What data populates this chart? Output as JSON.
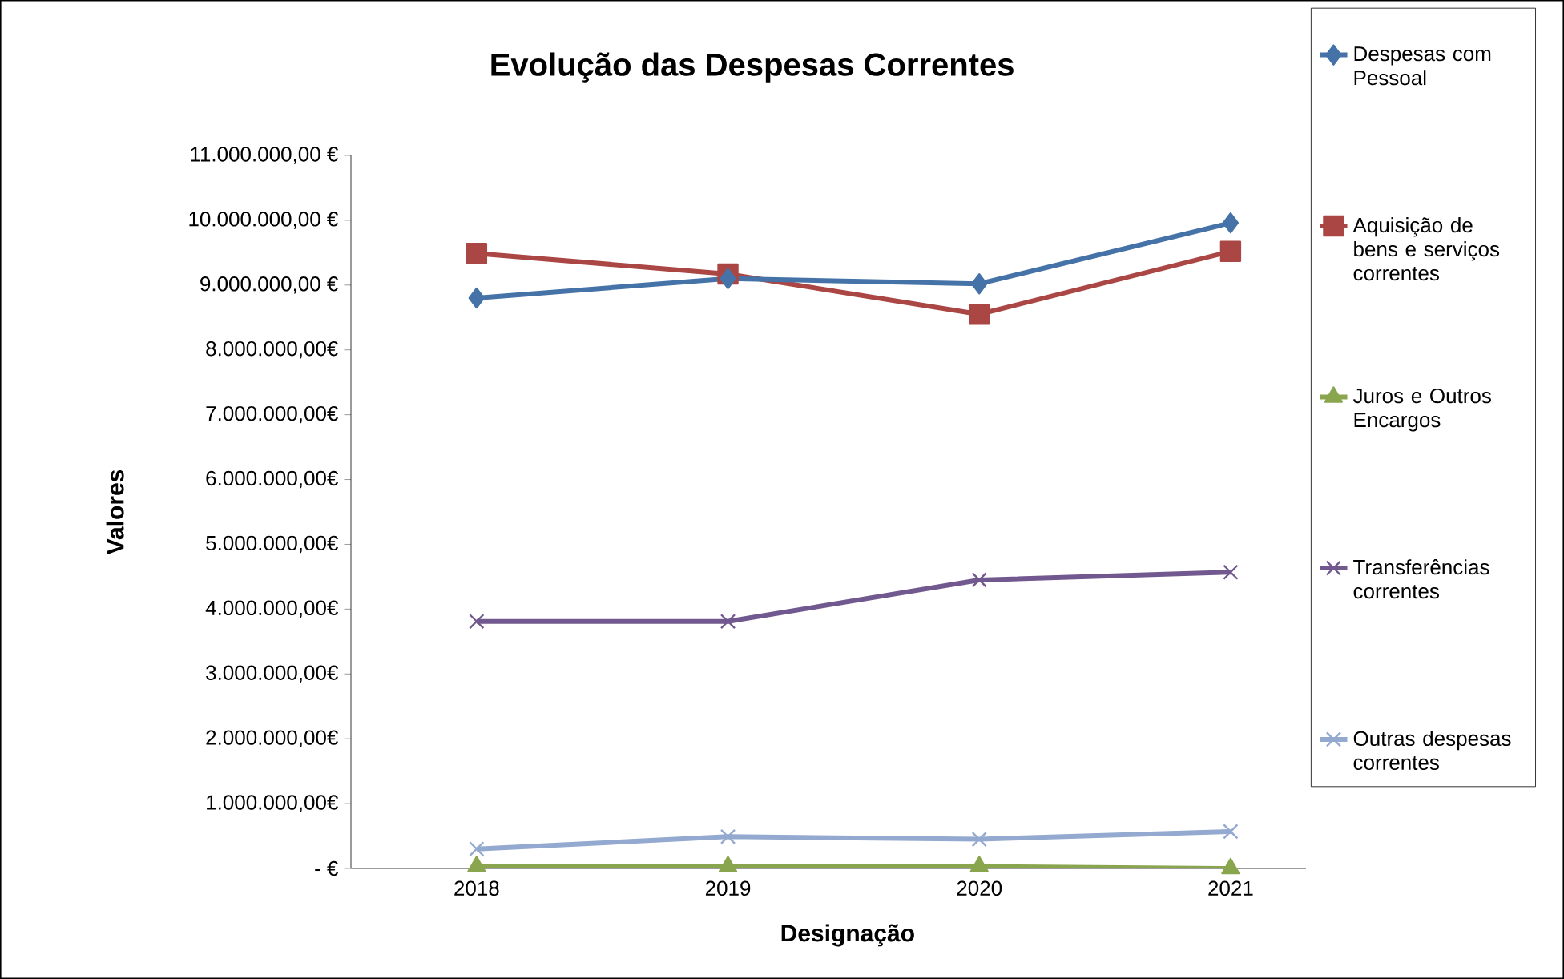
{
  "chart_data": {
    "type": "line",
    "title": "Evolução das Despesas Correntes",
    "xlabel": "Designação",
    "ylabel": "Valores",
    "categories": [
      "2018",
      "2019",
      "2020",
      "2021"
    ],
    "series": [
      {
        "name": "Despesas com Pessoal",
        "color": "#4572a7",
        "marker": "diamond",
        "values": [
          8800000,
          9100000,
          9020000,
          9960000
        ]
      },
      {
        "name": "Aquisição de bens e serviços correntes",
        "color": "#aa4643",
        "marker": "square",
        "values": [
          9490000,
          9170000,
          8550000,
          9520000
        ]
      },
      {
        "name": "Juros e Outros Encargos",
        "color": "#89a54e",
        "marker": "triangle",
        "values": [
          30000,
          30000,
          30000,
          0
        ]
      },
      {
        "name": "Transferências correntes",
        "color": "#71588f",
        "marker": "cross",
        "values": [
          3810000,
          3810000,
          4450000,
          4570000
        ]
      },
      {
        "name": "Outras despesas correntes",
        "color": "#93a9cf",
        "marker": "cross",
        "values": [
          300000,
          490000,
          450000,
          570000
        ]
      }
    ],
    "ylim": [
      0,
      11000000
    ],
    "yticks": [
      {
        "value": 0,
        "label": "-  €"
      },
      {
        "value": 1000000,
        "label": "1.000.000,00€"
      },
      {
        "value": 2000000,
        "label": "2.000.000,00€"
      },
      {
        "value": 3000000,
        "label": "3.000.000,00€"
      },
      {
        "value": 4000000,
        "label": "4.000.000,00€"
      },
      {
        "value": 5000000,
        "label": "5.000.000,00€"
      },
      {
        "value": 6000000,
        "label": "6.000.000,00€"
      },
      {
        "value": 7000000,
        "label": "7.000.000,00€"
      },
      {
        "value": 8000000,
        "label": "8.000.000,00€"
      },
      {
        "value": 9000000,
        "label": "9.000.000,00 €"
      },
      {
        "value": 10000000,
        "label": "10.000.000,00 €"
      },
      {
        "value": 11000000,
        "label": "11.000.000,00 €"
      }
    ],
    "grid": false,
    "legend": "right",
    "line_style": "solid"
  }
}
